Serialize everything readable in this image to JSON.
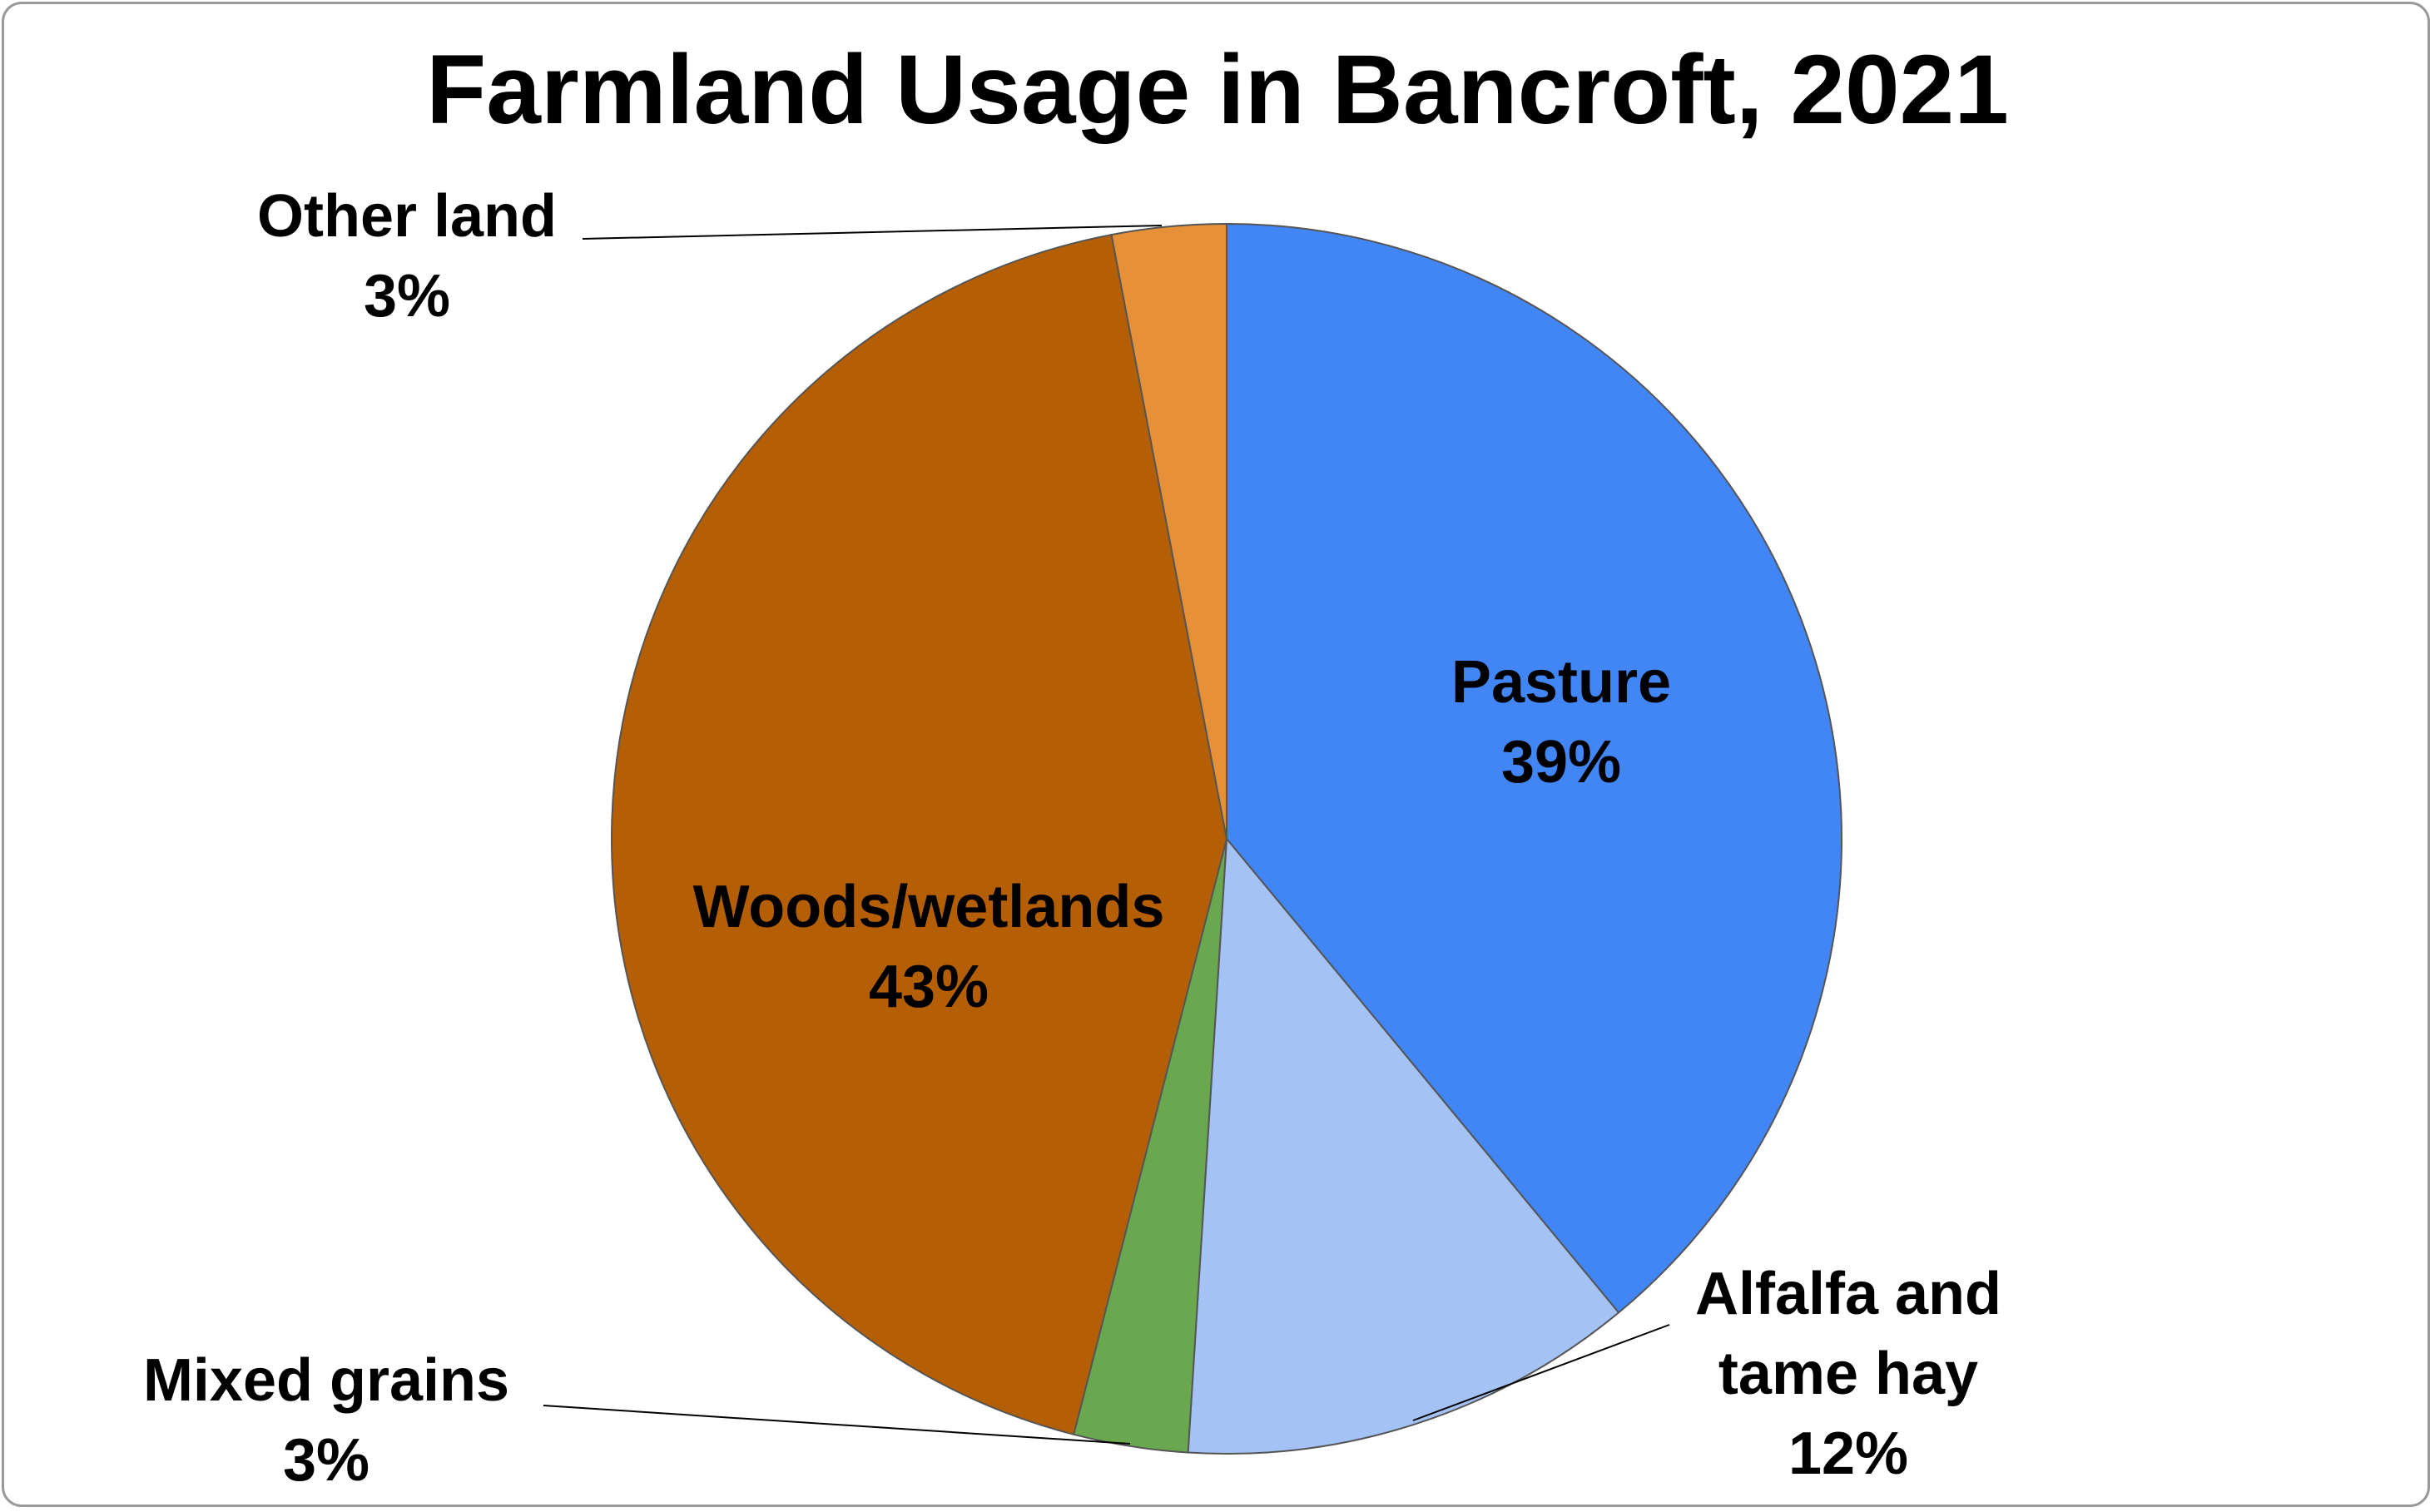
{
  "chart_data": {
    "type": "pie",
    "title": "Farmland Usage in Bancroft, 2021",
    "categories": [
      "Pasture",
      "Alfalfa and tame hay",
      "Mixed grains",
      "Woods/wetlands",
      "Other land"
    ],
    "values": [
      39,
      12,
      3,
      43,
      3
    ],
    "value_labels": [
      "39%",
      "12%",
      "3%",
      "43%",
      "3%"
    ],
    "colors": [
      "#4285f4",
      "#a4c2f4",
      "#6aa84f",
      "#b45f06",
      "#e69138"
    ]
  }
}
